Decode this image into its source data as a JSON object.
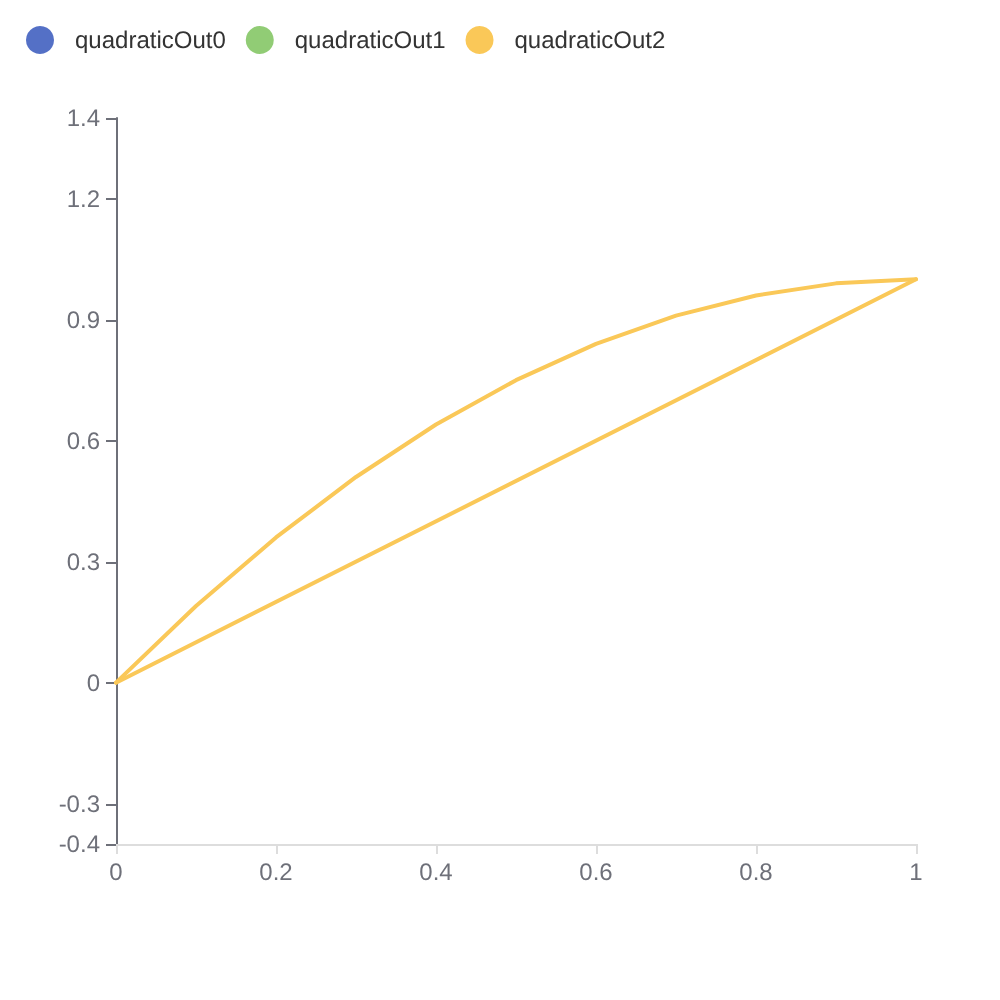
{
  "chart_data": {
    "type": "line",
    "xlim": [
      0,
      1
    ],
    "xticks": [
      0,
      0.2,
      0.4,
      0.6,
      0.8,
      1
    ],
    "ylim": [
      -0.4,
      1.4
    ],
    "yticks": [
      -0.4,
      -0.3,
      0,
      0.3,
      0.6,
      0.9,
      1.2,
      1.4
    ],
    "grid": false,
    "legend": "top left",
    "marker": "none",
    "line_style": "solid",
    "series": [
      {
        "name": "quadraticOut0",
        "color": "#5470c6"
      },
      {
        "name": "quadraticOut1",
        "color": "#91cc75"
      },
      {
        "name": "quadraticOut2",
        "color": "#fac858",
        "x": [
          0,
          0.1,
          0.2,
          0.3,
          0.4,
          0.5,
          0.6,
          0.7,
          0.8,
          0.9,
          1
        ],
        "values": [
          0,
          0.19,
          0.36,
          0.51,
          0.64,
          0.75,
          0.84,
          0.91,
          0.96,
          0.99,
          1
        ]
      },
      {
        "color": "#fac858",
        "x": [
          0,
          1
        ],
        "values": [
          0,
          1
        ]
      }
    ]
  }
}
